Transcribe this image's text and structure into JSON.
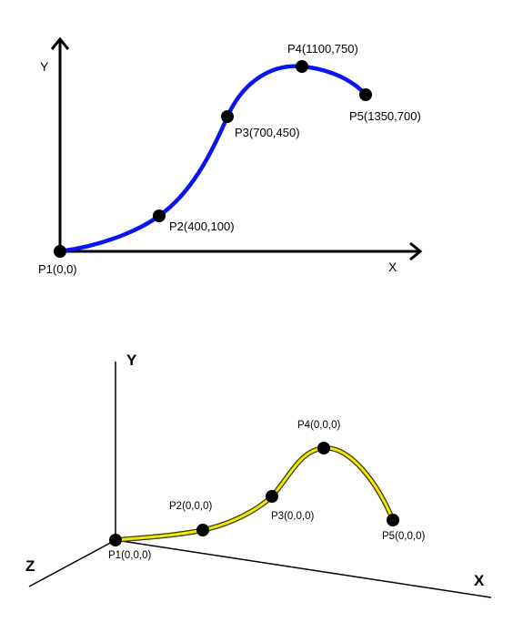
{
  "top_diagram": {
    "x_axis_label": "X",
    "y_axis_label": "Y",
    "curve_color": "#0a14f0",
    "points": [
      {
        "label": "P1(0,0)"
      },
      {
        "label": "P2(400,100)"
      },
      {
        "label": "P3(700,450)"
      },
      {
        "label": "P4(1100,750)"
      },
      {
        "label": "P5(1350,700)"
      }
    ]
  },
  "bottom_diagram": {
    "x_axis_label": "X",
    "y_axis_label": "Y",
    "z_axis_label": "Z",
    "curve_color": "#f0e60a",
    "points": [
      {
        "label": "P1(0,0,0)"
      },
      {
        "label": "P2(0,0,0)"
      },
      {
        "label": "P3(0,0,0)"
      },
      {
        "label": "P4(0,0,0)"
      },
      {
        "label": "P5(0,0,0)"
      }
    ]
  }
}
